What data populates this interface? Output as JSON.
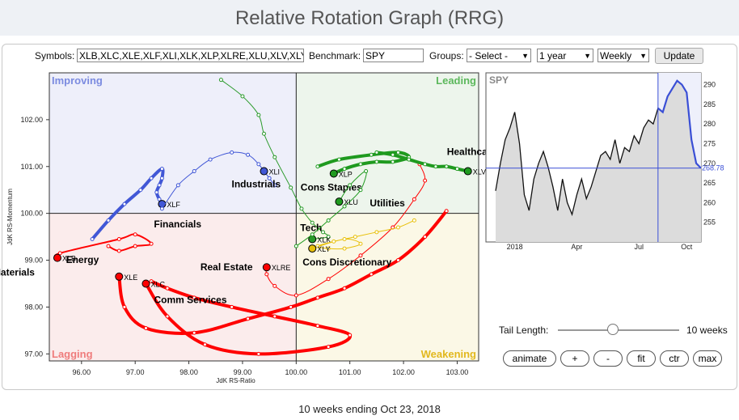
{
  "page_title": "Relative Rotation Graph (RRG)",
  "controls": {
    "symbols_label": "Symbols:",
    "symbols_value": "XLB,XLC,XLE,XLF,XLI,XLK,XLP,XLRE,XLU,XLV,XLY",
    "benchmark_label": "Benchmark:",
    "benchmark_value": "SPY",
    "groups_label": "Groups:",
    "groups_value": "- Select -",
    "period_value": "1 year",
    "frequency_value": "Weekly",
    "update_label": "Update"
  },
  "quadrants": {
    "improving": "Improving",
    "leading": "Leading",
    "lagging": "Lagging",
    "weakening": "Weakening"
  },
  "colors": {
    "improving": "#7b8be0",
    "leading": "#5cb85c",
    "lagging": "#ef7c7c",
    "weakening": "#e2b81e"
  },
  "mini_chart": {
    "symbol": "SPY",
    "current_value": "268.78",
    "y_ticks": [
      "290",
      "285",
      "280",
      "275",
      "270",
      "265",
      "260",
      "255"
    ],
    "x_labels": [
      "2018",
      "Apr",
      "Jul",
      "Oct"
    ]
  },
  "tail": {
    "label": "Tail Length:",
    "value": "10 weeks",
    "fraction": 0.45
  },
  "buttons": {
    "animate": "animate",
    "zoom_in": "+",
    "zoom_out": "-",
    "fit": "fit",
    "center": "ctr",
    "max": "max"
  },
  "footer": "10 weeks ending Oct 23, 2018",
  "chart_data": {
    "type": "scatter",
    "xlabel": "JdK RS-Ratio",
    "ylabel": "JdK RS-Momentum",
    "xlim": [
      95.4,
      103.4
    ],
    "ylim": [
      96.85,
      103.0
    ],
    "x_ticks": [
      "96.00",
      "97.00",
      "98.00",
      "99.00",
      "100.00",
      "101.00",
      "102.00",
      "103.00"
    ],
    "y_ticks": [
      "97.00",
      "98.00",
      "99.00",
      "100.00",
      "101.00",
      "102.00"
    ],
    "series": [
      {
        "symbol": "XLB",
        "label": "Materials",
        "color": "#ff0000",
        "width": 2,
        "x": [
          96.5,
          96.7,
          97.0,
          97.3,
          97.0,
          96.7,
          95.6,
          95.55
        ],
        "y": [
          99.3,
          99.2,
          99.3,
          99.35,
          99.55,
          99.45,
          99.15,
          99.05
        ]
      },
      {
        "symbol": "XLC",
        "label": "Comm Services",
        "color": "#ff0000",
        "width": 4,
        "x": [
          97.3,
          97.6,
          98.1,
          98.8,
          99.6,
          100.4,
          101.0,
          100.6,
          99.3,
          98.3,
          97.6,
          97.2
        ],
        "y": [
          98.55,
          98.4,
          98.2,
          98.0,
          97.8,
          97.6,
          97.4,
          97.15,
          97.0,
          97.2,
          97.8,
          98.5
        ]
      },
      {
        "symbol": "XLE",
        "label": "Energy",
        "color": "#ff0000",
        "width": 4,
        "x": [
          102.8,
          102.4,
          101.9,
          101.4,
          100.9,
          100.4,
          99.9,
          99.1,
          98.1,
          97.2,
          96.8,
          96.7
        ],
        "y": [
          100.05,
          99.5,
          99.0,
          98.7,
          98.4,
          98.2,
          98.0,
          97.75,
          97.45,
          97.55,
          98.0,
          98.65
        ]
      },
      {
        "symbol": "XLF",
        "label": "Financials",
        "color": "#4157d6",
        "width": 4,
        "x": [
          96.2,
          96.5,
          96.8,
          97.1,
          97.3,
          97.5,
          97.5,
          97.45,
          97.4,
          97.45,
          97.5
        ],
        "y": [
          99.45,
          99.85,
          100.2,
          100.5,
          100.75,
          100.95,
          100.75,
          100.6,
          100.45,
          100.3,
          100.2
        ]
      },
      {
        "symbol": "XLI",
        "label": "Industrials",
        "color": "#4157d6",
        "width": 1,
        "x": [
          97.5,
          97.8,
          98.1,
          98.4,
          98.8,
          99.1,
          99.3,
          99.5,
          99.6,
          99.5,
          99.4
        ],
        "y": [
          100.1,
          100.6,
          100.9,
          101.15,
          101.3,
          101.25,
          101.05,
          100.75,
          100.6,
          100.75,
          100.9
        ]
      },
      {
        "symbol": "XLK",
        "label": "Tech",
        "color": "#2a9a2a",
        "width": 1,
        "x": [
          98.6,
          99.0,
          99.3,
          99.4,
          99.6,
          99.9,
          100.1,
          100.3,
          100.5,
          100.6,
          100.3
        ],
        "y": [
          102.85,
          102.5,
          102.1,
          101.7,
          101.2,
          100.55,
          100.1,
          99.8,
          99.6,
          99.5,
          99.45
        ]
      },
      {
        "symbol": "XLP",
        "label": "Cons Staples",
        "color": "#1f9a1f",
        "width": 4,
        "x": [
          100.4,
          100.8,
          101.4,
          101.9,
          102.1,
          101.8,
          101.5,
          101.2,
          100.9,
          100.7
        ],
        "y": [
          101.0,
          101.15,
          101.25,
          101.3,
          101.2,
          101.1,
          101.1,
          101.05,
          100.95,
          100.85
        ]
      },
      {
        "symbol": "XLRE",
        "label": "Real Estate",
        "color": "#ff0000",
        "width": 1,
        "x": [
          102.3,
          102.4,
          102.2,
          101.8,
          101.2,
          100.6,
          100.0,
          99.6,
          99.45,
          99.45
        ],
        "y": [
          101.05,
          100.7,
          100.3,
          99.7,
          99.1,
          98.6,
          98.25,
          98.45,
          98.7,
          98.85
        ]
      },
      {
        "symbol": "XLU",
        "label": "Utilities",
        "color": "#1f9a1f",
        "width": 1,
        "x": [
          100.0,
          100.3,
          100.6,
          100.9,
          101.2,
          101.3,
          101.0,
          100.8
        ],
        "y": [
          99.3,
          99.55,
          99.85,
          100.15,
          100.5,
          100.9,
          100.6,
          100.25
        ]
      },
      {
        "symbol": "XLV",
        "label": "Healthcare",
        "color": "#1f9a1f",
        "width": 4,
        "x": [
          101.5,
          101.8,
          102.1,
          102.4,
          102.6,
          102.8,
          103.0,
          103.2
        ],
        "y": [
          101.3,
          101.25,
          101.15,
          101.05,
          101.0,
          101.0,
          100.95,
          100.9
        ]
      },
      {
        "symbol": "XLY",
        "label": "Cons Discretionary",
        "color": "#e8c00a",
        "width": 1,
        "x": [
          102.2,
          101.9,
          101.5,
          101.1,
          100.7,
          100.4,
          100.6,
          100.9,
          101.2,
          100.9,
          100.3
        ],
        "y": [
          99.85,
          99.7,
          99.6,
          99.5,
          99.4,
          99.3,
          99.25,
          99.25,
          99.35,
          99.45,
          99.25
        ]
      }
    ],
    "mini_series": {
      "ylim": [
        250,
        293
      ],
      "values": [
        263,
        270,
        276,
        279,
        283,
        275,
        262,
        258,
        266,
        270,
        273,
        269,
        264,
        258,
        266,
        260,
        257,
        262,
        266,
        261,
        264,
        268,
        272,
        273,
        271,
        276,
        270,
        274,
        273,
        277,
        275,
        279,
        281,
        280,
        284,
        283,
        287,
        289,
        291,
        290,
        288,
        276,
        270,
        268.78
      ]
    }
  }
}
